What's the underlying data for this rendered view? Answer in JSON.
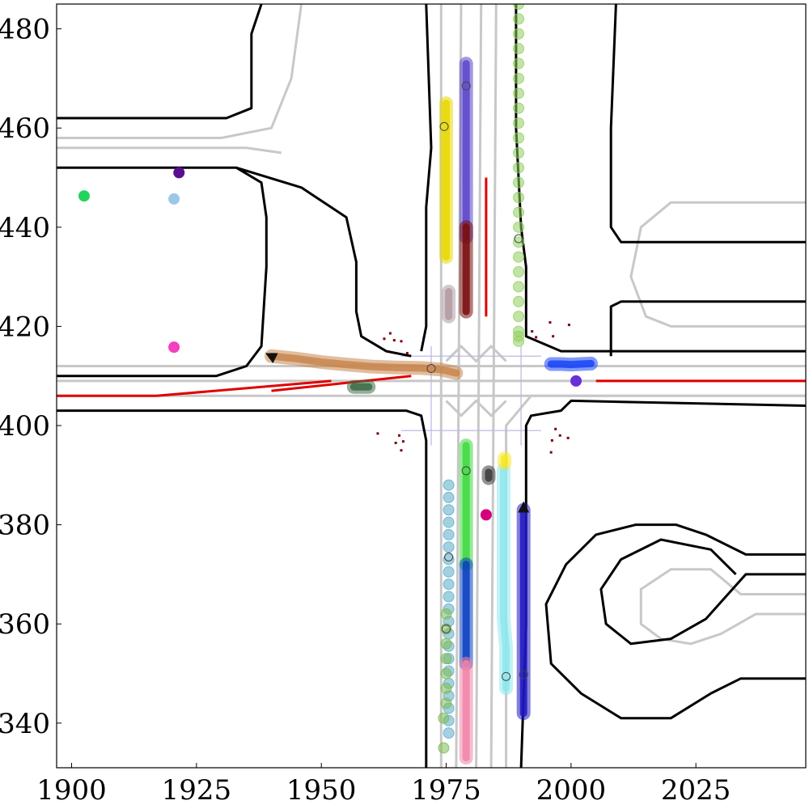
{
  "chart_data": {
    "type": "scatter",
    "title": "",
    "xlabel": "",
    "ylabel": "",
    "xlim": [
      1897,
      2047
    ],
    "ylim": [
      331,
      485
    ],
    "xticks": [
      1900,
      1925,
      1950,
      1975,
      2000,
      2025
    ],
    "yticks": [
      340,
      360,
      380,
      400,
      420,
      440,
      460,
      480
    ],
    "grid": false,
    "legend": "none",
    "map": {
      "road_boundary_color": "#000000",
      "lane_centerline_color": "#c8c8c8",
      "stop_line_color": "#e00000",
      "road_boundaries": [
        [
          [
            1897,
            462
          ],
          [
            1931,
            462
          ],
          [
            1936,
            464
          ],
          [
            1936,
            479
          ],
          [
            1938,
            485
          ]
        ],
        [
          [
            1897,
            410
          ],
          [
            1929,
            410
          ],
          [
            1935,
            412
          ],
          [
            1938,
            416
          ],
          [
            1939,
            432
          ],
          [
            1939,
            442
          ],
          [
            1938,
            449
          ],
          [
            1933,
            452
          ],
          [
            1897,
            452
          ]
        ],
        [
          [
            1897,
            403
          ],
          [
            1967,
            403
          ],
          [
            1970,
            402
          ],
          [
            1971,
            397
          ],
          [
            1971,
            331
          ]
        ],
        [
          [
            1968,
            414
          ],
          [
            1963,
            415
          ],
          [
            1958,
            418
          ],
          [
            1957,
            423
          ],
          [
            1957,
            433
          ],
          [
            1955,
            442
          ],
          [
            1946,
            448
          ],
          [
            1933,
            452
          ]
        ],
        [
          [
            1970,
            415
          ],
          [
            1971,
            420
          ],
          [
            1971,
            430
          ],
          [
            1971,
            444
          ],
          [
            1972,
            456
          ],
          [
            1971,
            485
          ]
        ],
        [
          [
            1990,
            331
          ],
          [
            1991,
            360
          ],
          [
            1991,
            400
          ],
          [
            1992,
            402
          ],
          [
            1998,
            403
          ],
          [
            2000,
            405
          ],
          [
            2047,
            404
          ]
        ],
        [
          [
            1989,
            485
          ],
          [
            1989,
            460
          ],
          [
            1990,
            440
          ],
          [
            1991,
            432
          ],
          [
            1991,
            422
          ],
          [
            1991,
            418
          ],
          [
            1998,
            415
          ],
          [
            2047,
            415
          ]
        ],
        [
          [
            2047,
            425
          ],
          [
            2010,
            425
          ],
          [
            2008,
            424
          ],
          [
            2008,
            414
          ]
        ],
        [
          [
            2047,
            437
          ],
          [
            2010,
            437
          ],
          [
            2008,
            440
          ],
          [
            2008,
            460
          ],
          [
            2009,
            485
          ]
        ],
        [
          [
            2047,
            370
          ],
          [
            2035,
            370
          ],
          [
            2027,
            361
          ],
          [
            2020,
            357
          ],
          [
            2012,
            356
          ],
          [
            2007,
            360
          ],
          [
            2006,
            367
          ],
          [
            2010,
            373
          ],
          [
            2018,
            377
          ],
          [
            2028,
            375
          ],
          [
            2033,
            370
          ]
        ],
        [
          [
            2047,
            349
          ],
          [
            2034,
            349
          ],
          [
            2028,
            346
          ],
          [
            2020,
            341
          ],
          [
            2010,
            341
          ],
          [
            2002,
            346
          ],
          [
            1996,
            352
          ],
          [
            1995,
            364
          ],
          [
            1999,
            372
          ],
          [
            2005,
            378
          ],
          [
            2013,
            380
          ],
          [
            2021,
            380
          ],
          [
            2027,
            378
          ],
          [
            2035,
            374
          ],
          [
            2047,
            374
          ]
        ]
      ],
      "lane_centerlines": [
        [
          [
            1897,
            458
          ],
          [
            1930,
            458
          ],
          [
            1940,
            460
          ],
          [
            1944,
            470
          ],
          [
            1946,
            485
          ]
        ],
        [
          [
            1897,
            456
          ],
          [
            1935,
            456
          ],
          [
            1942,
            455
          ]
        ],
        [
          [
            1897,
            406
          ],
          [
            2047,
            406
          ]
        ],
        [
          [
            1897,
            409
          ],
          [
            2047,
            409
          ]
        ],
        [
          [
            1897,
            412
          ],
          [
            2047,
            412
          ]
        ],
        [
          [
            1974,
            331
          ],
          [
            1974,
            485
          ]
        ],
        [
          [
            1977,
            331
          ],
          [
            1978,
            485
          ]
        ],
        [
          [
            1981,
            331
          ],
          [
            1982,
            485
          ]
        ],
        [
          [
            1984,
            331
          ],
          [
            1985,
            485
          ]
        ],
        [
          [
            1987,
            331
          ],
          [
            1987,
            400
          ],
          [
            1992,
            406
          ],
          [
            2047,
            406
          ]
        ],
        [
          [
            1975,
            405
          ],
          [
            1978,
            402
          ],
          [
            1981,
            405
          ],
          [
            1984,
            402
          ],
          [
            1987,
            405
          ]
        ],
        [
          [
            1975,
            413
          ],
          [
            1978,
            416
          ],
          [
            1981,
            413
          ],
          [
            1984,
            416
          ],
          [
            1987,
            413
          ]
        ],
        [
          [
            2047,
            420
          ],
          [
            2030,
            420
          ],
          [
            2020,
            420
          ],
          [
            2015,
            422
          ],
          [
            2012,
            430
          ],
          [
            2014,
            440
          ],
          [
            2020,
            445
          ],
          [
            2047,
            445
          ]
        ],
        [
          [
            2047,
            362
          ],
          [
            2037,
            362
          ],
          [
            2030,
            358
          ],
          [
            2024,
            356
          ],
          [
            2018,
            357
          ],
          [
            2014,
            360
          ],
          [
            2014,
            367
          ],
          [
            2020,
            371
          ],
          [
            2028,
            371
          ],
          [
            2034,
            366
          ],
          [
            2047,
            366
          ]
        ]
      ],
      "stop_lines": [
        [
          [
            1897,
            406
          ],
          [
            1917,
            406
          ]
        ],
        [
          [
            1917,
            406
          ],
          [
            1952,
            409
          ]
        ],
        [
          [
            1940,
            407
          ],
          [
            1968,
            410
          ]
        ],
        [
          [
            1983,
            422
          ],
          [
            1983,
            450
          ]
        ],
        [
          [
            2005,
            409
          ],
          [
            2047,
            409
          ]
        ]
      ],
      "faint_lines": [
        [
          [
            1972,
            396
          ],
          [
            1972,
            416
          ]
        ],
        [
          [
            1990,
            396
          ],
          [
            1990,
            416
          ]
        ],
        [
          [
            1966,
            414
          ],
          [
            1994,
            414
          ]
        ],
        [
          [
            1966,
            399
          ],
          [
            1994,
            399
          ]
        ]
      ]
    },
    "series": [
      {
        "color": "#c8864f",
        "kind": "track",
        "x": [
          1940,
          1945,
          1950,
          1955,
          1960,
          1965,
          1970,
          1974,
          1977
        ],
        "y": [
          414,
          413.5,
          412.8,
          412.3,
          411.9,
          411.7,
          411.6,
          411.3,
          410.6
        ],
        "marker_x": 1972,
        "marker_y": 411.5,
        "arrow_to_x": 1939,
        "arrow_to_y": 414.5
      },
      {
        "color": "#e8d800",
        "kind": "track",
        "x": [
          1975,
          1975,
          1975,
          1975,
          1975,
          1975
        ],
        "y": [
          465,
          458,
          450,
          444,
          438,
          434
        ],
        "marker_x": 1974.6,
        "marker_y": 460.3
      },
      {
        "color": "#5b45c9",
        "kind": "track",
        "x": [
          1979,
          1979,
          1979,
          1979,
          1979,
          1979
        ],
        "y": [
          473,
          466,
          458,
          451,
          444,
          438
        ],
        "marker_x": 1979,
        "marker_y": 468.5
      },
      {
        "color": "#7a0d0d",
        "kind": "track",
        "x": [
          1979,
          1979,
          1979,
          1979,
          1979
        ],
        "y": [
          440,
          435,
          430,
          426,
          423
        ]
      },
      {
        "color": "#b09aa0",
        "kind": "track",
        "x": [
          1975.5,
          1975.5,
          1975.5,
          1975.5
        ],
        "y": [
          427,
          425,
          423,
          422
        ]
      },
      {
        "color": "#8fcf5f",
        "kind": "dotted",
        "x": [
          1989.5,
          1989.5,
          1989.5,
          1989.5,
          1989.5,
          1989.5,
          1989.5,
          1989.5,
          1989.5,
          1989.5,
          1989.5,
          1989.5,
          1989.5,
          1989.5,
          1989.5,
          1989.5,
          1989.5,
          1989.5,
          1989.5,
          1989.5,
          1989.5,
          1989.5,
          1989.5,
          1989.5,
          1989.5
        ],
        "y": [
          485,
          482,
          479,
          476,
          473,
          470,
          467,
          464,
          461,
          458,
          455,
          452,
          449,
          446,
          443,
          440,
          437,
          434,
          431,
          428,
          425,
          422,
          419,
          418,
          417
        ],
        "marker_x": 1989.5,
        "marker_y": 437.7
      },
      {
        "color": "#1a45f5",
        "kind": "track",
        "x": [
          1996,
          1998,
          2000,
          2002,
          2004
        ],
        "y": [
          412.4,
          412.4,
          412.3,
          412.4,
          412.5
        ]
      },
      {
        "color": "#40d840",
        "kind": "track",
        "x": [
          1979,
          1979,
          1979,
          1979,
          1979,
          1979
        ],
        "y": [
          396,
          390,
          384,
          378,
          374,
          372
        ],
        "marker_x": 1979,
        "marker_y": 390.9
      },
      {
        "color": "#0a3fc0",
        "kind": "track",
        "x": [
          1979,
          1979,
          1979,
          1979,
          1979
        ],
        "y": [
          372,
          366,
          360,
          355,
          352
        ]
      },
      {
        "color": "#f085a8",
        "kind": "track",
        "x": [
          1979,
          1979,
          1979,
          1979,
          1979
        ],
        "y": [
          352,
          347,
          343,
          338,
          333
        ]
      },
      {
        "color": "#5aacc8",
        "kind": "dotted",
        "x": [
          1975.5,
          1975.5,
          1975.5,
          1975.5,
          1975.5,
          1975.5,
          1975.5,
          1975.5,
          1975.5,
          1975.5,
          1975.5,
          1975.5,
          1975.5,
          1975.5,
          1975.5,
          1975.5,
          1975.5,
          1975.5,
          1975.5,
          1975.5,
          1975.5
        ],
        "y": [
          388,
          385.5,
          383,
          380.5,
          378,
          375.5,
          373,
          370.5,
          368,
          365.5,
          363,
          360.5,
          358,
          355.5,
          353,
          350.5,
          348,
          345.5,
          343,
          340.5,
          338
        ],
        "marker_x": 1975.5,
        "marker_y": 373.5
      },
      {
        "color": "#7ebc50",
        "kind": "dotted",
        "x": [
          1975,
          1975,
          1975,
          1975,
          1975,
          1975,
          1975,
          1974.5,
          1974.5
        ],
        "y": [
          362,
          359,
          356,
          353,
          350,
          347,
          344,
          341,
          335
        ],
        "marker_x": 1975,
        "marker_y": 359
      },
      {
        "color": "#8ee8ec",
        "kind": "track",
        "x": [
          1986.5,
          1986.5,
          1986.5,
          1986.5,
          1986.5,
          1986.5,
          1987,
          1987
        ],
        "y": [
          391,
          385,
          379,
          373,
          367,
          361,
          355,
          347
        ],
        "marker_x": 1987,
        "marker_y": 349.4
      },
      {
        "color": "#2018c0",
        "kind": "track",
        "x": [
          1990.5,
          1990.5,
          1990.5,
          1990.5,
          1990.5,
          1990.5,
          1990.5
        ],
        "y": [
          383,
          377,
          371,
          365,
          359,
          352,
          342
        ],
        "marker_x": 1990.5,
        "marker_y": 349.8,
        "arrow_to_x": 1990.5,
        "arrow_to_y": 384.5
      },
      {
        "color": "#3a3a3a",
        "kind": "track",
        "x": [
          1983.5,
          1983.5
        ],
        "y": [
          390.6,
          389.4
        ]
      },
      {
        "color": "#f5e820",
        "kind": "track",
        "x": [
          1986.7,
          1986.7
        ],
        "y": [
          393.4,
          392.4
        ]
      },
      {
        "color": "#3d6b47",
        "kind": "track",
        "x": [
          1956.5,
          1959.5
        ],
        "y": [
          407.8,
          407.8
        ]
      }
    ],
    "points": [
      {
        "x": 1902.5,
        "y": 446.3,
        "color": "#22d45c"
      },
      {
        "x": 1921.5,
        "y": 451.0,
        "color": "#5a0f91"
      },
      {
        "x": 1920.5,
        "y": 445.7,
        "color": "#9cc8e8"
      },
      {
        "x": 1920.5,
        "y": 415.8,
        "color": "#f53ec0"
      },
      {
        "x": 2001.0,
        "y": 409.0,
        "color": "#6a30d8"
      },
      {
        "x": 1983.0,
        "y": 382.0,
        "color": "#d4007c"
      }
    ],
    "debris": [
      {
        "x": 1963.8,
        "y": 418.6
      },
      {
        "x": 1964.6,
        "y": 417.2
      },
      {
        "x": 1962.6,
        "y": 417.5
      },
      {
        "x": 1966.0,
        "y": 417.0
      },
      {
        "x": 1967.2,
        "y": 414.6
      },
      {
        "x": 1995.8,
        "y": 420.8
      },
      {
        "x": 1999.6,
        "y": 420.3
      },
      {
        "x": 1992.2,
        "y": 419.0
      },
      {
        "x": 1993.0,
        "y": 417.8
      },
      {
        "x": 1996.4,
        "y": 418.0
      },
      {
        "x": 1961.3,
        "y": 398.4
      },
      {
        "x": 1965.6,
        "y": 398.0
      },
      {
        "x": 1966.4,
        "y": 396.8
      },
      {
        "x": 1964.9,
        "y": 396.5
      },
      {
        "x": 1966.0,
        "y": 395.0
      },
      {
        "x": 1996.9,
        "y": 399.3
      },
      {
        "x": 1997.8,
        "y": 398.0
      },
      {
        "x": 1999.4,
        "y": 397.5
      },
      {
        "x": 1996.2,
        "y": 397.0
      },
      {
        "x": 1996.0,
        "y": 394.6
      }
    ]
  }
}
